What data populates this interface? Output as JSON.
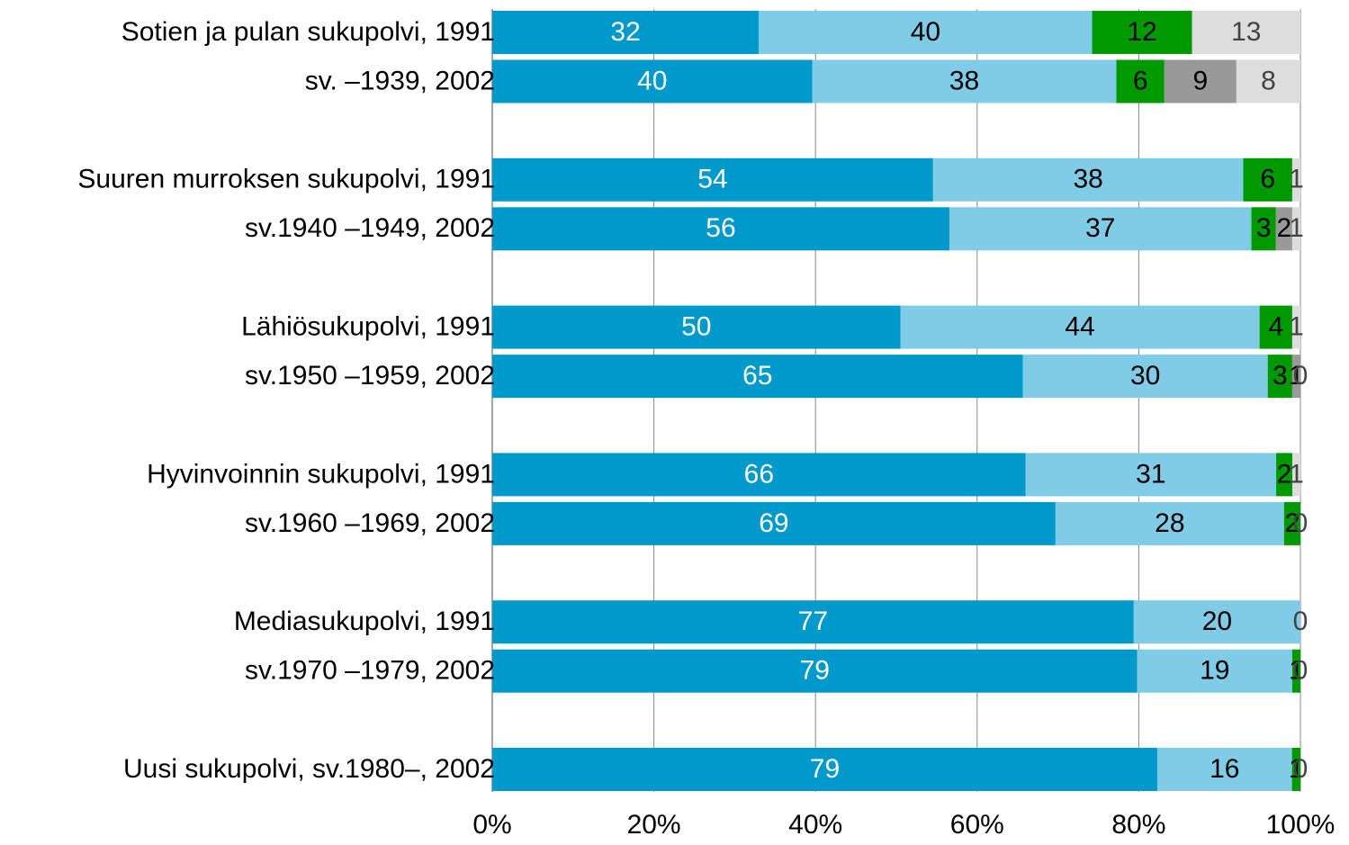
{
  "chart_data": {
    "type": "bar",
    "orientation": "horizontal",
    "stacking": "percent",
    "grid": true,
    "categories": [
      "Sotien ja pulan sukupolvi, 1991",
      "sv. –1939, 2002",
      "Suuren murroksen sukupolvi,  1991",
      "sv.1940 –1949, 2002",
      "Lähiösukupolvi,  1991",
      "sv.1950 –1959, 2002",
      "Hyvinvoinnin sukupolvi,  1991",
      "sv.1960 –1969, 2002",
      "Mediasukupolvi, 1991",
      "sv.1970 –1979, 2002",
      "Uusi sukupolvi, sv.1980–, 2002"
    ],
    "series": [
      {
        "color": "#0099cc",
        "label_color": "#ffffff",
        "values": [
          32,
          40,
          54,
          56,
          50,
          65,
          66,
          69,
          77,
          79,
          79
        ]
      },
      {
        "color": "#80cbe6",
        "label_color": "#000000",
        "values": [
          40,
          38,
          38,
          37,
          44,
          30,
          31,
          28,
          20,
          19,
          16
        ]
      },
      {
        "color": "#009900",
        "label_color": "#000000",
        "values": [
          12,
          6,
          6,
          3,
          4,
          3,
          2,
          2,
          null,
          1,
          1
        ]
      },
      {
        "color": "#999999",
        "label_color": "#000000",
        "values": [
          null,
          9,
          null,
          2,
          null,
          1,
          null,
          null,
          null,
          null,
          null
        ]
      },
      {
        "color": "#dddddd",
        "label_color": "#444444",
        "values": [
          13,
          8,
          1,
          1,
          1,
          0,
          1,
          0,
          0,
          0,
          0
        ]
      }
    ],
    "xlim": [
      0,
      100
    ],
    "xticks": [
      {
        "value": 0,
        "label": "0%"
      },
      {
        "value": 20,
        "label": "20%"
      },
      {
        "value": 40,
        "label": "40%"
      },
      {
        "value": 60,
        "label": "60%"
      },
      {
        "value": 80,
        "label": "80%"
      },
      {
        "value": 100,
        "label": "100%"
      }
    ]
  }
}
